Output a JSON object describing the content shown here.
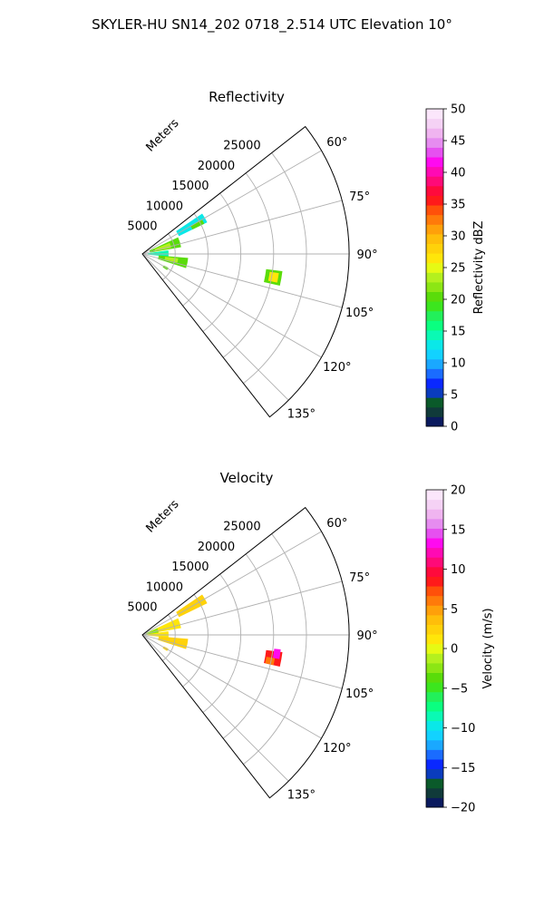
{
  "figure": {
    "title": "SKYLER-HU  SN14_202  0718_2.514 UTC Elevation 10°"
  },
  "chart_data": [
    {
      "type": "polar-sector-heatmap",
      "title": "Reflectivity",
      "radial_label": "Meters",
      "radial_ticks": [
        5000,
        10000,
        15000,
        20000,
        25000
      ],
      "radial_tick_labels": [
        "5000",
        "10000",
        "15000",
        "20000",
        "25000"
      ],
      "r_max": 31500,
      "azimuth_ticks": [
        60,
        75,
        90,
        105,
        120,
        135
      ],
      "azimuth_tick_labels": [
        "60°",
        "75°",
        "90°",
        "105°",
        "120°",
        "135°"
      ],
      "azimuth_range": [
        52,
        142
      ],
      "grid": true,
      "colorbar": {
        "label": "Reflectivity dBZ",
        "vmin": 0,
        "vmax": 50,
        "ticks": [
          0,
          5,
          10,
          15,
          20,
          25,
          30,
          35,
          40,
          45,
          50
        ],
        "tick_labels": [
          "0",
          "5",
          "10",
          "15",
          "20",
          "25",
          "30",
          "35",
          "40",
          "45",
          "50"
        ],
        "colors": [
          "#0a1a5e",
          "#103a3a",
          "#0a5a2a",
          "#0a3cbe",
          "#0a28ff",
          "#1a6cff",
          "#1aa8ff",
          "#12d2ff",
          "#0ae8e8",
          "#0afab4",
          "#0aff80",
          "#22f05a",
          "#3ce61e",
          "#5adc0a",
          "#8ce614",
          "#b4f01e",
          "#e6fa14",
          "#ffe60a",
          "#ffd20a",
          "#ffbe0a",
          "#ffa00a",
          "#ff7a0a",
          "#ff500a",
          "#ff1a1a",
          "#ff0a3c",
          "#ff0a78",
          "#ff0ab4",
          "#ff0af0",
          "#e650f0",
          "#e68cf0",
          "#f0b4f0",
          "#f5d2f5",
          "#fbe6fb"
        ]
      },
      "echo_regions": [
        {
          "az_min": 56,
          "az_max": 64,
          "r_min": 6200,
          "r_max": 11000,
          "value": 13
        },
        {
          "az_min": 60,
          "az_max": 64,
          "r_min": 8500,
          "r_max": 10500,
          "value": 20
        },
        {
          "az_min": 65,
          "az_max": 80,
          "r_min": 1200,
          "r_max": 6000,
          "value": 20
        },
        {
          "az_min": 68,
          "az_max": 78,
          "r_min": 2000,
          "r_max": 4500,
          "value": 23
        },
        {
          "az_min": 82,
          "az_max": 96,
          "r_min": 800,
          "r_max": 4000,
          "value": 15
        },
        {
          "az_min": 95,
          "az_max": 108,
          "r_min": 2500,
          "r_max": 7000,
          "value": 20
        },
        {
          "az_min": 97,
          "az_max": 104,
          "r_min": 3500,
          "r_max": 5500,
          "value": 24
        },
        {
          "az_min": 118,
          "az_max": 123,
          "r_min": 3700,
          "r_max": 4500,
          "value": 20
        },
        {
          "az_min": 97,
          "az_max": 103,
          "r_min": 19000,
          "r_max": 21500,
          "value": 20
        },
        {
          "az_min": 98,
          "az_max": 102,
          "r_min": 19600,
          "r_max": 21000,
          "value": 27
        }
      ]
    },
    {
      "type": "polar-sector-heatmap",
      "title": "Velocity",
      "radial_label": "Meters",
      "radial_ticks": [
        5000,
        10000,
        15000,
        20000,
        25000
      ],
      "radial_tick_labels": [
        "5000",
        "10000",
        "15000",
        "20000",
        "25000"
      ],
      "r_max": 31500,
      "azimuth_ticks": [
        60,
        75,
        90,
        105,
        120,
        135
      ],
      "azimuth_tick_labels": [
        "60°",
        "75°",
        "90°",
        "105°",
        "120°",
        "135°"
      ],
      "azimuth_range": [
        52,
        142
      ],
      "grid": true,
      "colorbar": {
        "label": "Velocity (m/s)",
        "vmin": -20,
        "vmax": 20,
        "ticks": [
          -20,
          -15,
          -10,
          -5,
          0,
          5,
          10,
          15,
          20
        ],
        "tick_labels": [
          "−20",
          "−15",
          "−10",
          "−5",
          "0",
          "5",
          "10",
          "15",
          "20"
        ],
        "colors": [
          "#0a1a5e",
          "#103a3a",
          "#0a5a2a",
          "#0a3cbe",
          "#0a28ff",
          "#1a6cff",
          "#1aa8ff",
          "#12d2ff",
          "#0ae8e8",
          "#0afab4",
          "#0aff80",
          "#22f05a",
          "#3ce61e",
          "#5adc0a",
          "#8ce614",
          "#b4f01e",
          "#e6fa14",
          "#ffe60a",
          "#ffd20a",
          "#ffbe0a",
          "#ffa00a",
          "#ff7a0a",
          "#ff500a",
          "#ff1a1a",
          "#ff0a3c",
          "#ff0a78",
          "#ff0ab4",
          "#ff0af0",
          "#e650f0",
          "#e68cf0",
          "#f0b4f0",
          "#f5d2f5",
          "#fbe6fb"
        ]
      },
      "echo_regions": [
        {
          "az_min": 56,
          "az_max": 64,
          "r_min": 6200,
          "r_max": 11000,
          "value": 3
        },
        {
          "az_min": 65,
          "az_max": 80,
          "r_min": 1200,
          "r_max": 6000,
          "value": 1
        },
        {
          "az_min": 66,
          "az_max": 84,
          "r_min": 600,
          "r_max": 2500,
          "value": -3
        },
        {
          "az_min": 82,
          "az_max": 96,
          "r_min": 800,
          "r_max": 4000,
          "value": 1
        },
        {
          "az_min": 95,
          "az_max": 108,
          "r_min": 2500,
          "r_max": 7000,
          "value": 2
        },
        {
          "az_min": 118,
          "az_max": 123,
          "r_min": 3700,
          "r_max": 4500,
          "value": 2
        },
        {
          "az_min": 97,
          "az_max": 103,
          "r_min": 19000,
          "r_max": 21500,
          "value": 8
        },
        {
          "az_min": 96,
          "az_max": 100,
          "r_min": 20200,
          "r_max": 21200,
          "value": 13
        },
        {
          "az_min": 100,
          "az_max": 103,
          "r_min": 19200,
          "r_max": 20500,
          "value": 6
        }
      ]
    }
  ]
}
